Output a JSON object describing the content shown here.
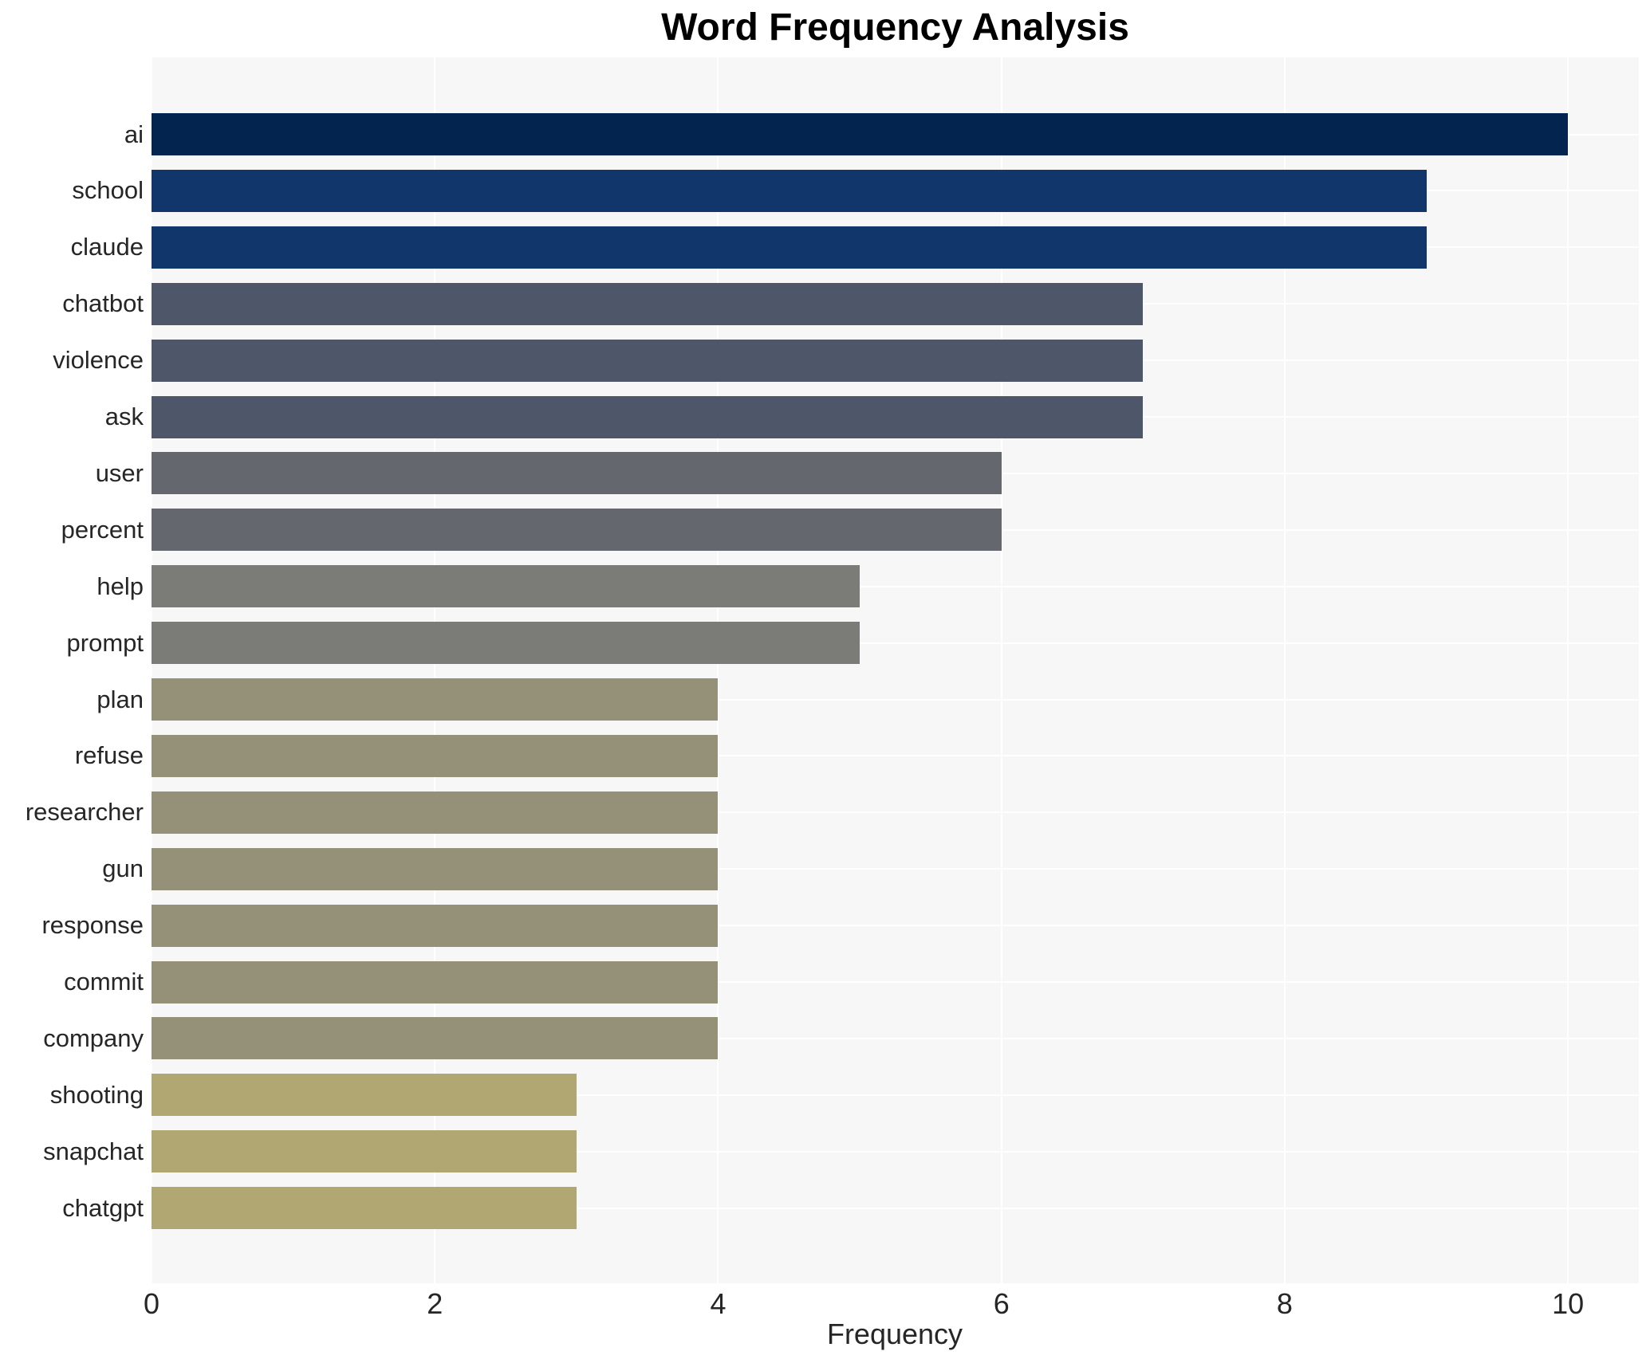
{
  "chart_data": {
    "type": "bar",
    "orientation": "horizontal",
    "title": "Word Frequency Analysis",
    "xlabel": "Frequency",
    "ylabel": "",
    "categories": [
      "ai",
      "school",
      "claude",
      "chatbot",
      "violence",
      "ask",
      "user",
      "percent",
      "help",
      "prompt",
      "plan",
      "refuse",
      "researcher",
      "gun",
      "response",
      "commit",
      "company",
      "shooting",
      "snapchat",
      "chatgpt"
    ],
    "values": [
      10,
      9,
      9,
      7,
      7,
      7,
      6,
      6,
      5,
      5,
      4,
      4,
      4,
      4,
      4,
      4,
      4,
      3,
      3,
      3
    ],
    "bar_colors": [
      "#03244e",
      "#10366b",
      "#10366b",
      "#4e576a",
      "#4e576a",
      "#4e576a",
      "#64676e",
      "#64676e",
      "#7b7b77",
      "#7b7b77",
      "#959078",
      "#959078",
      "#959078",
      "#959078",
      "#959078",
      "#959078",
      "#959078",
      "#b1a772",
      "#b1a772",
      "#b1a772"
    ],
    "xticks": [
      0,
      2,
      4,
      6,
      8,
      10
    ],
    "xlim": [
      0,
      10.5
    ],
    "grid": true,
    "legend": "none",
    "plot_background": "#f7f7f7",
    "grid_color": "#ffffff",
    "text_color": "#262626",
    "title_color": "#000000"
  }
}
